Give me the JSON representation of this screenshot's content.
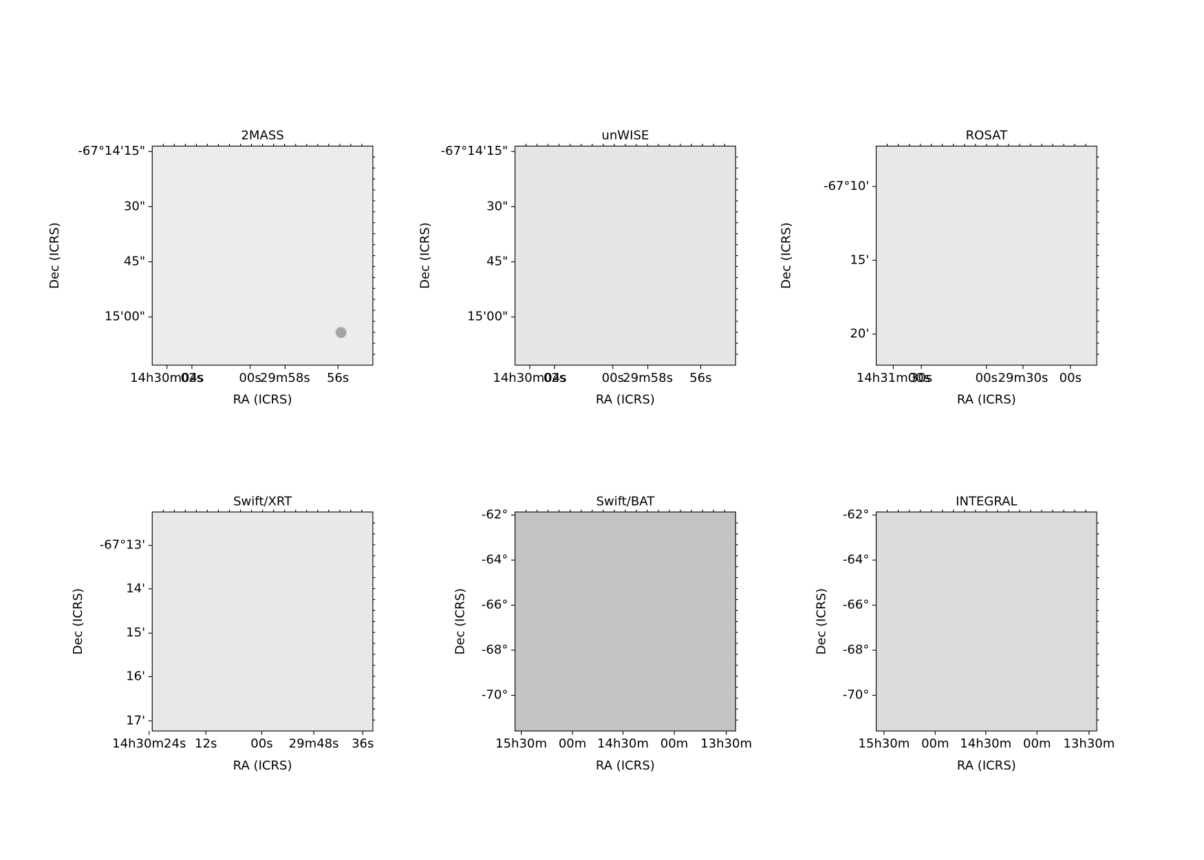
{
  "panels": [
    {
      "title": "2MASS",
      "xlabel": "RA (ICRS)",
      "ylabel": "Dec (ICRS)",
      "xticks": [
        "14h30m04s",
        "02s",
        "00s",
        "29m58s",
        "56s"
      ],
      "yticks": [
        "-67°14'15\"",
        "30\"",
        "45\"",
        "15'00\""
      ]
    },
    {
      "title": "unWISE",
      "xlabel": "RA (ICRS)",
      "ylabel": "Dec (ICRS)",
      "xticks": [
        "14h30m04s",
        "02s",
        "00s",
        "29m58s",
        "56s"
      ],
      "yticks": [
        "-67°14'15\"",
        "30\"",
        "45\"",
        "15'00\""
      ]
    },
    {
      "title": "ROSAT",
      "xlabel": "RA (ICRS)",
      "ylabel": "Dec (ICRS)",
      "xticks": [
        "14h31m00s",
        "30s",
        "00s",
        "29m30s",
        "00s"
      ],
      "yticks": [
        "-67°10'",
        "15'",
        "20'"
      ]
    },
    {
      "title": "Swift/XRT",
      "xlabel": "RA (ICRS)",
      "ylabel": "Dec (ICRS)",
      "xticks": [
        "14h30m24s",
        "12s",
        "00s",
        "29m48s",
        "36s"
      ],
      "yticks": [
        "-67°13'",
        "14'",
        "15'",
        "16'",
        "17'"
      ]
    },
    {
      "title": "Swift/BAT",
      "xlabel": "RA (ICRS)",
      "ylabel": "Dec (ICRS)",
      "xticks": [
        "15h30m",
        "00m",
        "14h30m",
        "00m",
        "13h30m"
      ],
      "yticks": [
        "-62°",
        "-64°",
        "-66°",
        "-68°",
        "-70°"
      ]
    },
    {
      "title": "INTEGRAL",
      "xlabel": "RA (ICRS)",
      "ylabel": "Dec (ICRS)",
      "xticks": [
        "15h30m",
        "00m",
        "14h30m",
        "00m",
        "13h30m"
      ],
      "yticks": [
        "-62°",
        "-64°",
        "-66°",
        "-68°",
        "-70°"
      ]
    }
  ]
}
